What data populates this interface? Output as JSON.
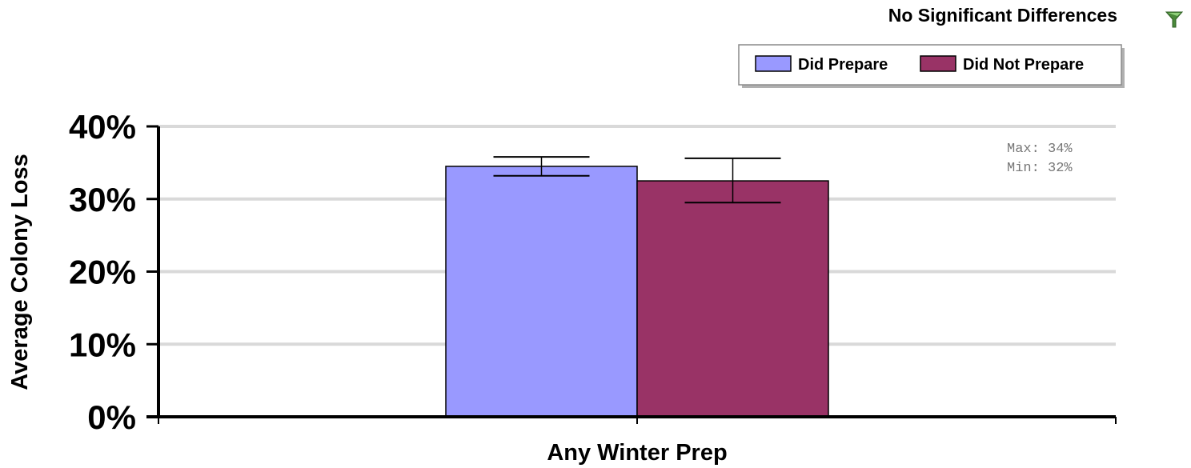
{
  "status_text": "No Significant Differences",
  "filter_icon": "filter-funnel-icon",
  "colors": {
    "did_prepare": "#9999FF",
    "did_not_prepare": "#993366",
    "grid": "#D9D9D9",
    "axis": "#000000"
  },
  "stats": {
    "max": "Max: 34%",
    "min": "Min: 32%"
  },
  "chart_data": {
    "type": "bar",
    "categories": [
      "Any Winter Prep"
    ],
    "series": [
      {
        "name": "Did Prepare",
        "values": [
          34.5
        ],
        "error_low": [
          33.2
        ],
        "error_high": [
          35.8
        ]
      },
      {
        "name": "Did Not Prepare",
        "values": [
          32.5
        ],
        "error_low": [
          29.5
        ],
        "error_high": [
          35.6
        ]
      }
    ],
    "xlabel": "Any Winter Prep",
    "ylabel": "Average Colony Loss",
    "ylim": [
      0,
      40
    ],
    "yticks": [
      "0%",
      "10%",
      "20%",
      "30%",
      "40%"
    ],
    "grid": true,
    "legend_position": "top-right"
  }
}
